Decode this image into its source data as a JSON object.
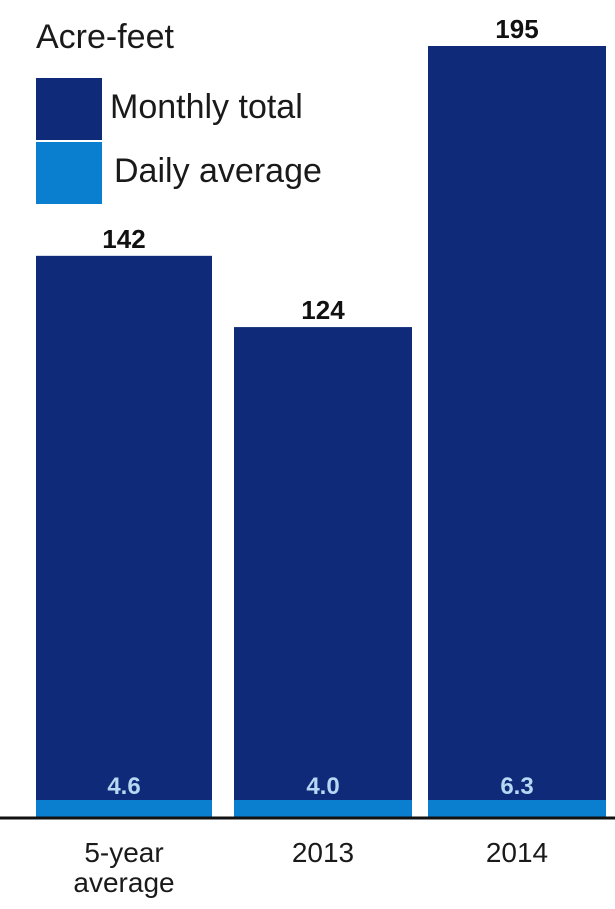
{
  "chart_data": {
    "type": "bar",
    "unit_label": "Acre-feet",
    "categories": [
      "5-year average",
      "2013",
      "2014"
    ],
    "category_lines": [
      [
        "5-year",
        "average"
      ],
      [
        "2013"
      ],
      [
        "2014"
      ]
    ],
    "series": [
      {
        "name": "Monthly total",
        "values": [
          142,
          124,
          195
        ],
        "labels": [
          "142",
          "124",
          "195"
        ]
      },
      {
        "name": "Daily average",
        "values": [
          4.6,
          4.0,
          6.3
        ],
        "labels": [
          "4.6",
          "4.0",
          "6.3"
        ]
      }
    ],
    "ylim": [
      0,
      195
    ],
    "grid": false,
    "legend_position": "top-left",
    "colors": {
      "monthly": "#0e2a78",
      "daily": "#0a7fcf",
      "axis": "#111111",
      "daily_label": "#b7d7f2"
    }
  }
}
